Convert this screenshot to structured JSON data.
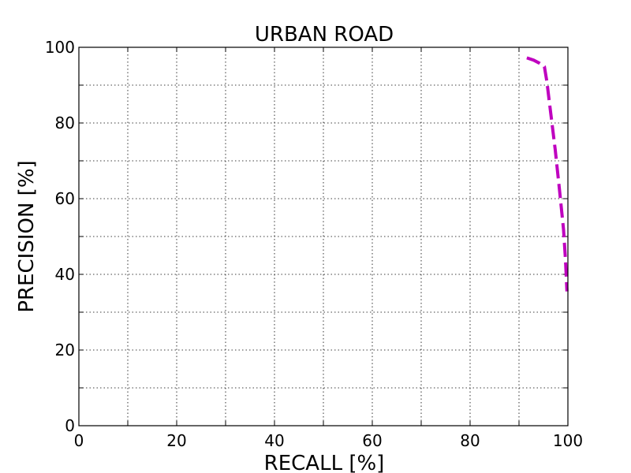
{
  "chart_data": {
    "type": "line",
    "title": "URBAN ROAD",
    "xlabel": "RECALL [%]",
    "ylabel": "PRECISION [%]",
    "xlim": [
      0,
      100
    ],
    "ylim": [
      0,
      100
    ],
    "xticks": [
      0,
      20,
      40,
      60,
      80,
      100
    ],
    "yticks": [
      0,
      20,
      40,
      60,
      80,
      100
    ],
    "xtick_labels": [
      "0",
      "20",
      "40",
      "60",
      "80",
      "100"
    ],
    "ytick_labels": [
      "0",
      "20",
      "40",
      "60",
      "80",
      "100"
    ],
    "grid": true,
    "grid_step": 10,
    "series": [
      {
        "color": "#bf00bf",
        "line_style": "dashed",
        "x": [
          91.6,
          93.0,
          94.2,
          95.2,
          95.7,
          96.4,
          97.4,
          98.3,
          99.1,
          99.5,
          99.8
        ],
        "y": [
          97.2,
          96.6,
          95.8,
          94.9,
          91.0,
          83.5,
          73.0,
          62.0,
          52.0,
          44.0,
          35.5
        ]
      }
    ]
  }
}
